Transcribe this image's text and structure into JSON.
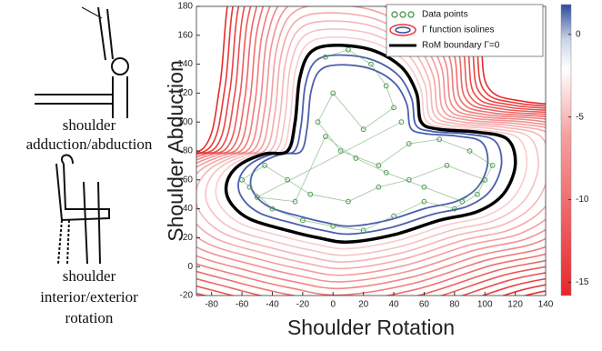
{
  "captions": [
    [
      "shoulder",
      "adduction/abduction"
    ],
    [
      "shoulder",
      "interior/exterior",
      "rotation"
    ]
  ],
  "chart_data": {
    "type": "contour",
    "x_label": "Shoulder Rotation",
    "y_label": "Shoulder Abduction",
    "legend": [
      "Data points",
      "Γ function isolines",
      "RoM boundary   Γ=0"
    ],
    "xlim": [
      -90,
      140
    ],
    "xticks": [
      -80,
      -60,
      -40,
      -20,
      0,
      20,
      40,
      60,
      80,
      100,
      120,
      140
    ],
    "ylim": [
      -20,
      180
    ],
    "yticks": [
      -20,
      0,
      20,
      40,
      60,
      80,
      100,
      120,
      140,
      160,
      180
    ],
    "clim": [
      -15.8,
      1.8
    ],
    "cticks": [
      0,
      -5,
      -10,
      -15
    ],
    "boundary": {
      "x": [
        0,
        25,
        45,
        55,
        58,
        70,
        95,
        115,
        120,
        112,
        95,
        70,
        40,
        10,
        -10,
        -30,
        -55,
        -68,
        -70,
        -62,
        -45,
        -30,
        -25,
        -22,
        -15
      ],
      "y": [
        153,
        150,
        138,
        120,
        100,
        95,
        93,
        88,
        70,
        50,
        38,
        32,
        22,
        17,
        20,
        25,
        33,
        45,
        58,
        70,
        78,
        80,
        100,
        130,
        148
      ]
    },
    "levels": [
      1,
      0.5,
      -1,
      -2,
      -3,
      -4,
      -5,
      -6,
      -7,
      -8,
      -9,
      -10,
      -11,
      -12,
      -13,
      -14,
      -15
    ],
    "points": {
      "x": [
        -5,
        10,
        25,
        35,
        40,
        20,
        0,
        -10,
        5,
        30,
        50,
        70,
        90,
        105,
        95,
        80,
        60,
        40,
        20,
        0,
        -20,
        -40,
        -55,
        -60,
        -45,
        -30,
        -15,
        10,
        30,
        50,
        75,
        100,
        85,
        60,
        35,
        15,
        -5,
        -25,
        -50,
        45
      ],
      "y": [
        145,
        150,
        140,
        125,
        110,
        95,
        120,
        100,
        80,
        70,
        85,
        88,
        80,
        70,
        50,
        40,
        45,
        35,
        25,
        28,
        32,
        40,
        55,
        60,
        70,
        60,
        50,
        45,
        55,
        60,
        70,
        60,
        45,
        55,
        65,
        75,
        90,
        45,
        48,
        100
      ]
    }
  }
}
